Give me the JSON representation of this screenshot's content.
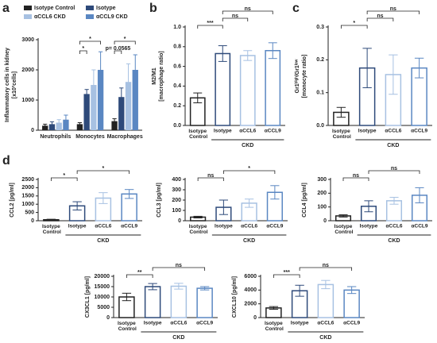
{
  "chart_data": [
    {
      "type": "grouped_bar",
      "panel": "a",
      "ylabel": [
        "Inflammatory cells in kidney",
        "[x10³cells]"
      ],
      "categories": [
        "Neutrophils",
        "Monocytes",
        "Macrophages"
      ],
      "series": [
        {
          "name": "Isotype Control",
          "color": "#222222",
          "values": [
            150,
            200,
            300
          ],
          "errors": [
            50,
            50,
            80
          ]
        },
        {
          "name": "Isotype",
          "color": "#2e4a7a",
          "values": [
            200,
            1200,
            1100
          ],
          "errors": [
            80,
            150,
            300
          ]
        },
        {
          "name": "αCCL6 CKD",
          "color": "#a7c1e2",
          "values": [
            250,
            1500,
            1600
          ],
          "errors": [
            100,
            500,
            600
          ]
        },
        {
          "name": "αCCL9 CKD",
          "color": "#5a87c2",
          "values": [
            350,
            2000,
            2000
          ],
          "errors": [
            150,
            600,
            500
          ]
        }
      ],
      "ylim": [
        0,
        3000
      ],
      "yticks": [
        0,
        1000,
        2000,
        3000
      ],
      "comparisons": [
        {
          "category": "Monocytes",
          "series": [
            "Isotype Control",
            "Isotype"
          ],
          "label": "*"
        },
        {
          "category": "Monocytes",
          "series": [
            "Isotype Control",
            "αCCL9 CKD"
          ],
          "label": "*"
        },
        {
          "category": "Macrophages",
          "series": [
            "Isotype Control",
            "Isotype"
          ],
          "label": "p= 0.0565"
        },
        {
          "category": "Macrophages",
          "series": [
            "Isotype Control",
            "αCCL9 CKD"
          ],
          "label": "*"
        }
      ]
    },
    {
      "type": "bar",
      "panel": "b",
      "ylabel": [
        "M2/M1",
        "[macrophage ratio]"
      ],
      "categories": [
        "Isotype Control",
        "Isotype",
        "αCCL6",
        "αCCL9"
      ],
      "group_label": "CKD",
      "colors": [
        "#222222",
        "#2e4a7a",
        "#a7c1e2",
        "#5a87c2"
      ],
      "values": [
        0.28,
        0.73,
        0.71,
        0.76
      ],
      "errors": [
        0.05,
        0.08,
        0.05,
        0.08
      ],
      "ylim": [
        0,
        1
      ],
      "yticks": [
        {
          "value": 0,
          "label": "0.0"
        },
        0.2,
        0.4,
        0.6,
        0.8,
        {
          "value": 1,
          "label": "1.0"
        }
      ],
      "comparisons": [
        {
          "groups": [
            "Isotype Control",
            "Isotype"
          ],
          "label": "***"
        },
        {
          "groups": [
            "Isotype",
            "αCCL6"
          ],
          "label": "ns"
        },
        {
          "groups": [
            "Isotype",
            "αCCL9"
          ],
          "label": "ns"
        }
      ]
    },
    {
      "type": "bar",
      "panel": "c",
      "ylabel": [
        "Gr1ʰⁱᵍʰ/Gr1ˡᵒʷ",
        "[monocyte ratio]"
      ],
      "categories": [
        "Isotype Control",
        "Isotype",
        "αCCL6",
        "αCCL9"
      ],
      "group_label": "CKD",
      "colors": [
        "#222222",
        "#2e4a7a",
        "#a7c1e2",
        "#5a87c2"
      ],
      "values": [
        0.04,
        0.175,
        0.155,
        0.175
      ],
      "errors": [
        0.015,
        0.06,
        0.06,
        0.03
      ],
      "ylim": [
        0,
        0.3
      ],
      "yticks": [
        {
          "value": 0,
          "label": "0.0"
        },
        0.1,
        0.2,
        0.3
      ],
      "comparisons": [
        {
          "groups": [
            "Isotype Control",
            "Isotype"
          ],
          "label": "*"
        },
        {
          "groups": [
            "Isotype",
            "αCCL6"
          ],
          "label": "ns"
        },
        {
          "groups": [
            "Isotype",
            "αCCL9"
          ],
          "label": "ns"
        }
      ]
    },
    {
      "type": "bar",
      "panel": "d",
      "ylabel": [
        "CCL2 [pg/ml]"
      ],
      "categories": [
        "Isotype Control",
        "Isotype",
        "αCCL6",
        "αCCL9"
      ],
      "group_label": "CKD",
      "colors": [
        "#222222",
        "#2e4a7a",
        "#a7c1e2",
        "#5a87c2"
      ],
      "values": [
        60,
        900,
        1370,
        1620
      ],
      "errors": [
        30,
        250,
        330,
        270
      ],
      "ylim": [
        0,
        2500
      ],
      "yticks": [
        0,
        500,
        1000,
        1500,
        2000,
        2500
      ],
      "comparisons": [
        {
          "groups": [
            "Isotype Control",
            "Isotype"
          ],
          "label": "*"
        },
        {
          "groups": [
            "Isotype",
            "αCCL9"
          ],
          "label": "*"
        }
      ]
    },
    {
      "type": "bar",
      "ylabel": [
        "CCL3 [pg/ml]"
      ],
      "categories": [
        "Isotype Control",
        "Isotype",
        "αCCL6",
        "αCCL9"
      ],
      "group_label": "CKD",
      "colors": [
        "#222222",
        "#2e4a7a",
        "#a7c1e2",
        "#5a87c2"
      ],
      "values": [
        35,
        130,
        170,
        275
      ],
      "errors": [
        8,
        70,
        40,
        65
      ],
      "ylim": [
        0,
        400
      ],
      "yticks": [
        0,
        100,
        200,
        300,
        400
      ],
      "comparisons": [
        {
          "groups": [
            "Isotype Control",
            "Isotype"
          ],
          "label": "ns"
        },
        {
          "groups": [
            "Isotype",
            "αCCL9"
          ],
          "label": "*"
        }
      ]
    },
    {
      "type": "bar",
      "ylabel": [
        "CCL4 [pg/ml]"
      ],
      "categories": [
        "Isotype Control",
        "Isotype",
        "αCCL6",
        "αCCL9"
      ],
      "group_label": "CKD",
      "colors": [
        "#222222",
        "#2e4a7a",
        "#a7c1e2",
        "#5a87c2"
      ],
      "values": [
        35,
        105,
        145,
        185
      ],
      "errors": [
        8,
        40,
        25,
        55
      ],
      "ylim": [
        0,
        300
      ],
      "yticks": [
        0,
        100,
        200,
        300
      ],
      "comparisons": [
        {
          "groups": [
            "Isotype Control",
            "Isotype"
          ],
          "label": "ns"
        },
        {
          "groups": [
            "Isotype",
            "αCCL9"
          ],
          "label": "ns"
        }
      ]
    },
    {
      "type": "bar",
      "ylabel": [
        "CX3CL1 [pg/ml]"
      ],
      "categories": [
        "Isotype Control",
        "Isotype",
        "αCCL6",
        "αCCL9"
      ],
      "group_label": "CKD",
      "colors": [
        "#222222",
        "#2e4a7a",
        "#a7c1e2",
        "#5a87c2"
      ],
      "values": [
        10000,
        15000,
        15200,
        14200
      ],
      "errors": [
        1800,
        1500,
        1400,
        800
      ],
      "ylim": [
        0,
        20000
      ],
      "yticks": [
        0,
        5000,
        10000,
        15000,
        20000
      ],
      "comparisons": [
        {
          "groups": [
            "Isotype Control",
            "Isotype"
          ],
          "label": "**"
        },
        {
          "groups": [
            "Isotype",
            "αCCL9"
          ],
          "label": "ns"
        }
      ]
    },
    {
      "type": "bar",
      "ylabel": [
        "CXCL10 [pg/ml]"
      ],
      "categories": [
        "Isotype Control",
        "Isotype",
        "αCCL6",
        "αCCL9"
      ],
      "group_label": "CKD",
      "colors": [
        "#222222",
        "#2e4a7a",
        "#a7c1e2",
        "#5a87c2"
      ],
      "values": [
        1400,
        3900,
        4800,
        4000
      ],
      "errors": [
        200,
        800,
        600,
        500
      ],
      "ylim": [
        0,
        6000
      ],
      "yticks": [
        0,
        2000,
        4000,
        6000
      ],
      "comparisons": [
        {
          "groups": [
            "Isotype Control",
            "Isotype"
          ],
          "label": "***"
        },
        {
          "groups": [
            "Isotype",
            "αCCL9"
          ],
          "label": "ns"
        }
      ]
    }
  ]
}
